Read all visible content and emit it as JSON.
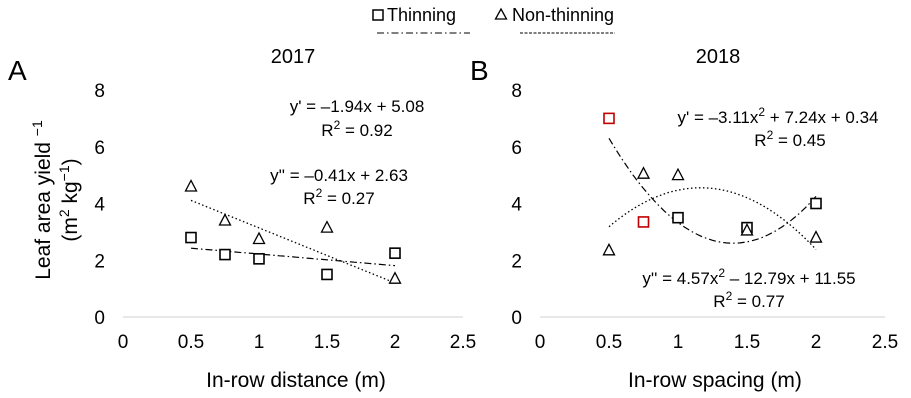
{
  "legend": {
    "items": [
      {
        "label": "Thinning",
        "marker": "square",
        "line_style": "dash-dot"
      },
      {
        "label": "Non-thinning",
        "marker": "triangle",
        "line_style": "dashed"
      }
    ]
  },
  "ylabel_line1": "Leaf area yield",
  "ylabel_sup": "−1",
  "ylabel_line2_a": "(m",
  "ylabel_line2_sup1": "2",
  "ylabel_line2_b": " kg",
  "ylabel_line2_sup2": "−1",
  "ylabel_line2_c": ")",
  "panels": [
    {
      "panel_label": "A",
      "title": "2017",
      "xlabel": "In-row distance (m)",
      "eq1": {
        "main": "y' = –1.94x + 5.08",
        "r2_prefix": "R",
        "r2_sup": "2",
        "r2_value": " = 0.92"
      },
      "eq2": {
        "main": "y'' = –0.41x + 2.63",
        "r2_prefix": "R",
        "r2_sup": "2",
        "r2_value": " = 0.27"
      }
    },
    {
      "panel_label": "B",
      "title": "2018",
      "xlabel": "In-row spacing (m)",
      "eq1": {
        "parts": [
          "y' = –3.11x",
          "2",
          " + 7.24x + 0.34"
        ],
        "r2_prefix": "R",
        "r2_sup": "2",
        "r2_value": " = 0.45"
      },
      "eq2": {
        "parts": [
          "y'' = 4.57x",
          "2",
          " – 12.79x + 11.55"
        ],
        "r2_prefix": "R",
        "r2_sup": "2",
        "r2_value": " = 0.77"
      }
    }
  ],
  "chart_data": [
    {
      "type": "scatter",
      "title": "2017",
      "xlabel": "In-row distance (m)",
      "ylabel": "Leaf area yield −1 (m2 kg−1)",
      "xlim": [
        0,
        2.5
      ],
      "ylim": [
        0,
        8
      ],
      "xticks": [
        "0",
        "0.5",
        "1",
        "1.5",
        "2",
        "2.5"
      ],
      "yticks": [
        "0",
        "2",
        "4",
        "6",
        "8"
      ],
      "grid": false,
      "series": [
        {
          "name": "Thinning",
          "marker": "square",
          "color": "#000000",
          "points": [
            [
              0.5,
              2.8
            ],
            [
              0.75,
              2.2
            ],
            [
              1.0,
              2.05
            ],
            [
              1.5,
              1.5
            ],
            [
              2.0,
              2.25
            ]
          ],
          "trend": {
            "kind": "linear",
            "coef": [
              2.63,
              -0.41
            ],
            "x_range": [
              0.5,
              2.0
            ],
            "style": "dash-dot"
          }
        },
        {
          "name": "Non-thinning",
          "marker": "triangle",
          "color": "#000000",
          "points": [
            [
              0.5,
              4.6
            ],
            [
              0.75,
              3.4
            ],
            [
              1.0,
              2.75
            ],
            [
              1.5,
              3.15
            ],
            [
              2.0,
              1.35
            ]
          ],
          "trend": {
            "kind": "linear",
            "coef": [
              5.08,
              -1.94
            ],
            "x_range": [
              0.5,
              2.0
            ],
            "style": "dotted"
          }
        }
      ]
    },
    {
      "type": "scatter",
      "title": "2018",
      "xlabel": "In-row spacing (m)",
      "ylabel": "Leaf area yield −1 (m2 kg−1)",
      "xlim": [
        0,
        2.5
      ],
      "ylim": [
        0,
        8
      ],
      "xticks": [
        "0",
        "0.5",
        "1",
        "1.5",
        "2",
        "2.5"
      ],
      "yticks": [
        "0",
        "2",
        "4",
        "6",
        "8"
      ],
      "grid": false,
      "series": [
        {
          "name": "Thinning",
          "marker": "square",
          "color": "#000000",
          "highlight_color": "#c00000",
          "points": [
            [
              0.5,
              7.0,
              true
            ],
            [
              0.75,
              3.35,
              true
            ],
            [
              1.0,
              3.5,
              false
            ],
            [
              1.5,
              3.15,
              false
            ],
            [
              2.0,
              4.0,
              false
            ]
          ],
          "trend": {
            "kind": "quadratic",
            "coef": [
              11.55,
              -12.79,
              4.57
            ],
            "x_range": [
              0.5,
              2.0
            ],
            "style": "dash-dot"
          }
        },
        {
          "name": "Non-thinning",
          "marker": "triangle",
          "color": "#000000",
          "points": [
            [
              0.5,
              2.35
            ],
            [
              0.75,
              5.05
            ],
            [
              1.0,
              5.0
            ],
            [
              1.5,
              3.05
            ],
            [
              2.0,
              2.8
            ]
          ],
          "trend": {
            "kind": "quadratic",
            "coef": [
              0.34,
              7.24,
              -3.11
            ],
            "x_range": [
              0.5,
              2.0
            ],
            "style": "dotted"
          }
        }
      ]
    }
  ]
}
